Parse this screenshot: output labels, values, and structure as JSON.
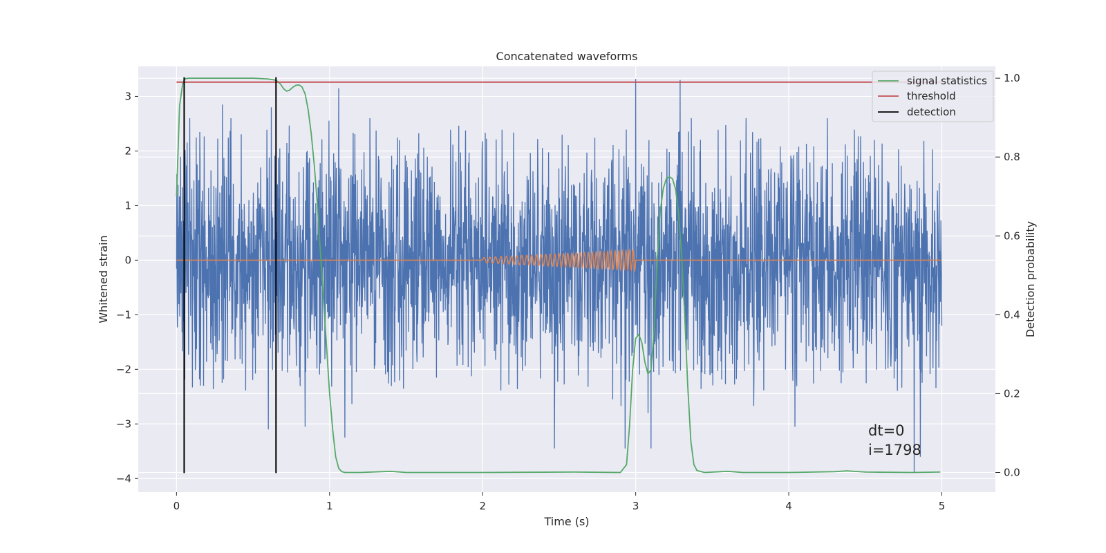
{
  "chart_data": {
    "type": "line",
    "title": "Concatenated waveforms",
    "xlabel": "Time (s)",
    "ylabel": "Whitened strain",
    "y2label": "Detection probability",
    "xlim": [
      -0.25,
      5.35
    ],
    "ylim": [
      -4.25,
      3.55
    ],
    "y2lim": [
      -0.05,
      1.03
    ],
    "xticks": [
      0,
      1,
      2,
      3,
      4,
      5
    ],
    "yticks": [
      -4,
      -3,
      -2,
      -1,
      0,
      1,
      2,
      3
    ],
    "y2ticks": [
      0.0,
      0.2,
      0.4,
      0.6,
      0.8,
      1.0
    ],
    "xtick_labels": [
      "0",
      "1",
      "2",
      "3",
      "4",
      "5"
    ],
    "ytick_labels": [
      "−4",
      "−3",
      "−2",
      "−1",
      "0",
      "1",
      "2",
      "3"
    ],
    "y2tick_labels": [
      "0.0",
      "0.2",
      "0.4",
      "0.6",
      "0.8",
      "1.0"
    ],
    "grid": true,
    "legend_placement": "top-right",
    "legend": [
      "signal statistics",
      "threshold",
      "detection"
    ],
    "colors": {
      "strain": "#4c72b0",
      "template": "#dd8452",
      "signal_statistics": "#55a868",
      "threshold": "#c44e52",
      "detection": "#000000",
      "background": "#eaeaf2",
      "grid": "#ffffff"
    },
    "series": [
      {
        "name": "Whitened strain",
        "axis": "left",
        "kind": "noise",
        "x_range": [
          0,
          5
        ],
        "typical_envelope": [
          -2.1,
          2.2
        ],
        "extremes": [
          [
            0.3,
            2.85
          ],
          [
            0.62,
            2.8
          ],
          [
            1.06,
            3.15
          ],
          [
            3.0,
            3.32
          ],
          [
            3.29,
            3.3
          ],
          [
            4.86,
            3.2
          ],
          [
            0.6,
            -3.1
          ],
          [
            0.84,
            -3.05
          ],
          [
            1.1,
            -3.25
          ],
          [
            2.47,
            -3.45
          ],
          [
            2.93,
            -3.45
          ],
          [
            3.1,
            -3.45
          ],
          [
            4.04,
            -3.05
          ],
          [
            4.82,
            -3.9
          ],
          [
            4.86,
            -3.6
          ]
        ]
      },
      {
        "name": "Template",
        "axis": "left",
        "x": [
          0,
          2,
          3,
          5
        ],
        "y": [
          0,
          0,
          0,
          0
        ],
        "chirp": {
          "t0": 2.0,
          "t1": 3.0,
          "amp0": 0.05,
          "amp1": 0.19,
          "f0": 26,
          "f1": 44
        }
      },
      {
        "name": "signal statistics",
        "axis": "right",
        "x": [
          0.0,
          0.02,
          0.04,
          0.05,
          0.06,
          0.08,
          0.1,
          0.2,
          0.3,
          0.5,
          0.6,
          0.65,
          0.68,
          0.7,
          0.72,
          0.74,
          0.76,
          0.78,
          0.8,
          0.82,
          0.84,
          0.86,
          0.88,
          0.9,
          0.92,
          0.94,
          0.96,
          0.98,
          1.0,
          1.02,
          1.04,
          1.06,
          1.08,
          1.1,
          1.2,
          1.4,
          1.5,
          2.0,
          2.6,
          2.9,
          2.94,
          2.96,
          2.98,
          3.0,
          3.02,
          3.04,
          3.06,
          3.08,
          3.1,
          3.12,
          3.14,
          3.16,
          3.18,
          3.2,
          3.22,
          3.24,
          3.26,
          3.28,
          3.3,
          3.32,
          3.34,
          3.36,
          3.38,
          3.4,
          3.45,
          3.6,
          3.7,
          4.0,
          4.3,
          4.38,
          4.5,
          4.8,
          4.99
        ],
        "y": [
          0.7,
          0.93,
          0.985,
          0.995,
          0.999,
          1.0,
          1.0,
          1.0,
          1.0,
          1.0,
          0.998,
          0.995,
          0.985,
          0.973,
          0.967,
          0.97,
          0.977,
          0.982,
          0.983,
          0.978,
          0.96,
          0.92,
          0.86,
          0.78,
          0.68,
          0.56,
          0.44,
          0.32,
          0.2,
          0.11,
          0.04,
          0.01,
          0.002,
          0.0,
          0.0,
          0.003,
          0.0,
          0.0,
          0.001,
          0.0,
          0.02,
          0.12,
          0.26,
          0.34,
          0.35,
          0.33,
          0.28,
          0.25,
          0.26,
          0.36,
          0.53,
          0.66,
          0.72,
          0.745,
          0.75,
          0.745,
          0.72,
          0.66,
          0.55,
          0.4,
          0.22,
          0.08,
          0.02,
          0.005,
          0.0,
          0.003,
          0.0,
          0.0,
          0.002,
          0.004,
          0.001,
          0.0,
          0.001
        ]
      },
      {
        "name": "threshold",
        "axis": "right",
        "x": [
          0,
          5
        ],
        "y": [
          0.99,
          0.99
        ]
      },
      {
        "name": "detection",
        "axis": "left",
        "x": [
          0.05,
          0.65
        ],
        "y_span": [
          -3.9,
          3.35
        ]
      }
    ],
    "annotations": [
      "dt=0",
      "i=1798"
    ]
  }
}
